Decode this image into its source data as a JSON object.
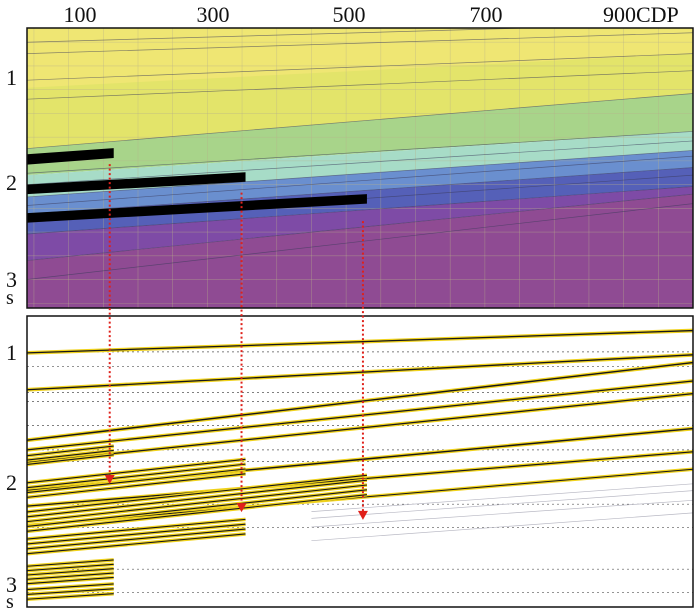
{
  "axis": {
    "x_ticks": [
      {
        "cdp": 100,
        "label": "100"
      },
      {
        "cdp": 300,
        "label": "300"
      },
      {
        "cdp": 500,
        "label": "500"
      },
      {
        "cdp": 700,
        "label": "700"
      },
      {
        "cdp": 900,
        "label": "900"
      }
    ],
    "x_unit": "CDP",
    "x_range": [
      40,
      1000
    ],
    "y_ticks": [
      {
        "t": 1,
        "label": "1"
      },
      {
        "t": 2,
        "label": "2"
      },
      {
        "t": 3,
        "label": "3"
      }
    ],
    "y_unit": "s"
  },
  "model_panel": {
    "time_range": [
      0.35,
      3.3
    ],
    "layer_colors": [
      "#efe673",
      "#e3e46a",
      "#a8d48a",
      "#a7dcc7",
      "#6a8fcf",
      "#5560b8",
      "#7e4ba6",
      "#8f4b93"
    ],
    "gridline_color": "#b8b08a",
    "wedges": [
      {
        "cdp_end": 165,
        "depth": 1.7
      },
      {
        "cdp_end": 355,
        "depth": 2.03
      },
      {
        "cdp_end": 530,
        "depth": 2.33
      }
    ]
  },
  "seismic_panel": {
    "time_range": [
      0.32,
      3.32
    ],
    "dashed_levels": [
      0.69,
      0.84,
      1.11,
      1.2,
      1.45,
      1.7,
      1.82,
      2.26,
      2.5,
      2.93,
      3.17
    ],
    "arrow_color": "#e0201a"
  }
}
